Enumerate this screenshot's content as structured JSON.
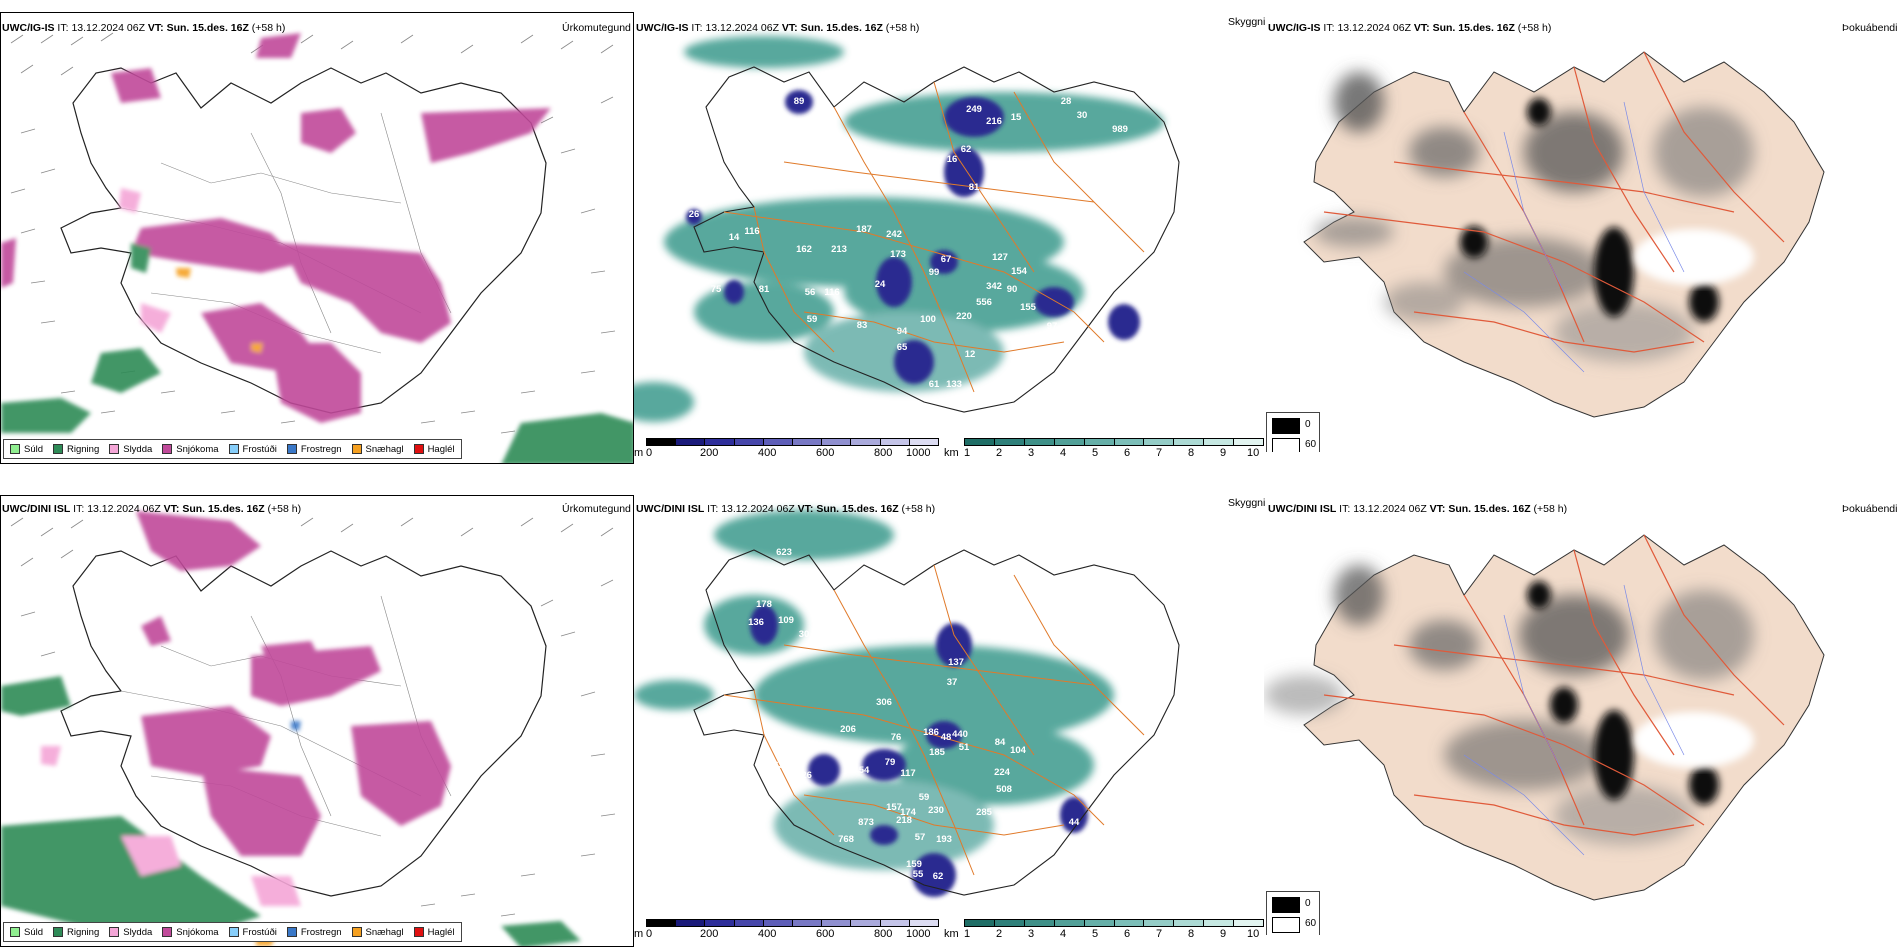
{
  "rows": [
    {
      "model": "UWC/IG-IS",
      "it_label": "IT:",
      "it_value": "13.12.2024 06Z",
      "vt_label": "VT: Sun. 15.des. 16Z",
      "lead": "(+58 h)",
      "vis_labels": [
        "89",
        "249",
        "216",
        "15",
        "28",
        "30",
        "989",
        "62",
        "16",
        "81",
        "187",
        "242",
        "213",
        "67",
        "127",
        "154",
        "116",
        "162",
        "173",
        "99",
        "342",
        "556",
        "90",
        "75",
        "56",
        "24",
        "116",
        "155",
        "59",
        "100",
        "220",
        "97",
        "83",
        "94",
        "65",
        "12",
        "61",
        "133",
        "280",
        "81",
        "26",
        "14",
        "34"
      ]
    },
    {
      "model": "UWC/DINI ISL",
      "it_label": "IT:",
      "it_value": "13.12.2024 06Z",
      "vt_label": "VT: Sun. 15.des. 16Z",
      "lead": "(+58 h)",
      "vis_labels": [
        "623",
        "22",
        "178",
        "136",
        "109",
        "30",
        "137",
        "37",
        "306",
        "206",
        "76",
        "186",
        "440",
        "48",
        "84",
        "104",
        "185",
        "224",
        "508",
        "285",
        "163",
        "126",
        "54",
        "79",
        "117",
        "59",
        "157",
        "174",
        "873",
        "218",
        "230",
        "57",
        "193",
        "768",
        "159",
        "55",
        "62",
        "133",
        "310",
        "12",
        "51",
        "44"
      ]
    }
  ],
  "titles": {
    "ptype": "Úrkomutegund",
    "vis": "Skyggni",
    "fog": "Þokuábendi"
  },
  "ptype_legend": [
    {
      "label": "Súld",
      "color": "#90ee90"
    },
    {
      "label": "Rigning",
      "color": "#2e8b57"
    },
    {
      "label": "Slydda",
      "color": "#f4a6d7"
    },
    {
      "label": "Snjókoma",
      "color": "#c04a9a"
    },
    {
      "label": "Frostúði",
      "color": "#87cefa"
    },
    {
      "label": "Frostregn",
      "color": "#3a78c8"
    },
    {
      "label": "Snæhagl",
      "color": "#f5a020"
    },
    {
      "label": "Haglél",
      "color": "#e01010"
    }
  ],
  "ceiling_bar": {
    "unit": "m",
    "ticks": [
      "0",
      "200",
      "400",
      "600",
      "800",
      "1000"
    ],
    "colors": [
      "#000000",
      "#1a1a7a",
      "#2e2e9a",
      "#4646aa",
      "#5e5eb8",
      "#7878c4",
      "#9090d0",
      "#aaaadc",
      "#c4c4e8",
      "#dcdcf2"
    ]
  },
  "vis_bar": {
    "unit": "km",
    "ticks": [
      "1",
      "2",
      "3",
      "4",
      "5",
      "6",
      "7",
      "8",
      "9",
      "10"
    ],
    "colors": [
      "#1f6e66",
      "#2f807a",
      "#3f9088",
      "#52a098",
      "#66afa8",
      "#7cbeb8",
      "#94ccc6",
      "#acdad4",
      "#c6e8e2",
      "#e2f4f0"
    ]
  },
  "fog_key": {
    "top": "0",
    "bottom": "60"
  },
  "colors": {
    "snow": "#c04a9a",
    "rain": "#2e8b57",
    "sleet": "#f4a6d7",
    "vis_teal": "#3a9a8c",
    "ceiling_blue": "#2a2a90",
    "roads": "#e07a2a",
    "land_fog": "#f2dccb",
    "fog_roads": "#e05a3a",
    "rivers": "#7a8ae8"
  }
}
